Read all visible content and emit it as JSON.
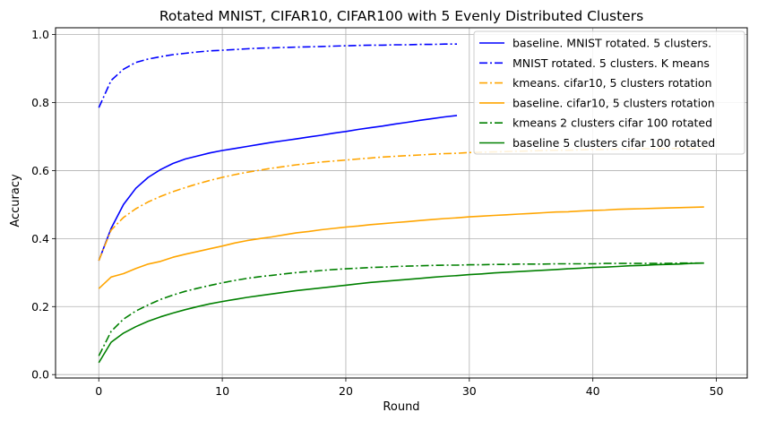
{
  "chart_data": {
    "type": "line",
    "title": "Rotated MNIST, CIFAR10, CIFAR100 with 5 Evenly Distributed Clusters",
    "xlabel": "Round",
    "ylabel": "Accuracy",
    "xlim": [
      -3.5,
      52.5
    ],
    "ylim": [
      -0.01,
      1.02
    ],
    "xticks": [
      0,
      10,
      20,
      30,
      40,
      50
    ],
    "yticks": [
      0.0,
      0.2,
      0.4,
      0.6,
      0.8,
      1.0
    ],
    "xtick_labels": [
      "0",
      "10",
      "20",
      "30",
      "40",
      "50"
    ],
    "ytick_labels": [
      "0.0",
      "0.2",
      "0.4",
      "0.6",
      "0.8",
      "1.0"
    ],
    "grid": true,
    "legend_position": "top-right",
    "series": [
      {
        "name": "baseline. MNIST rotated. 5 clusters.",
        "color": "#0000ff",
        "linestyle": "solid",
        "x": [
          0,
          1,
          2,
          3,
          4,
          5,
          6,
          7,
          8,
          9,
          10,
          11,
          12,
          13,
          14,
          15,
          16,
          17,
          18,
          19,
          20,
          21,
          22,
          23,
          24,
          25,
          26,
          27,
          28,
          29
        ],
        "values": [
          0.335,
          0.43,
          0.5,
          0.548,
          0.58,
          0.603,
          0.621,
          0.634,
          0.643,
          0.652,
          0.659,
          0.665,
          0.671,
          0.677,
          0.683,
          0.688,
          0.693,
          0.699,
          0.704,
          0.71,
          0.715,
          0.721,
          0.726,
          0.731,
          0.737,
          0.742,
          0.748,
          0.753,
          0.758,
          0.762
        ]
      },
      {
        "name": "MNIST rotated. 5 clusters. K means",
        "color": "#0000ff",
        "linestyle": "dashdot",
        "x": [
          0,
          1,
          2,
          3,
          4,
          5,
          6,
          7,
          8,
          9,
          10,
          11,
          12,
          13,
          14,
          15,
          16,
          17,
          18,
          19,
          20,
          21,
          22,
          23,
          24,
          25,
          26,
          27,
          28,
          29
        ],
        "values": [
          0.785,
          0.865,
          0.898,
          0.918,
          0.928,
          0.935,
          0.941,
          0.945,
          0.949,
          0.952,
          0.954,
          0.956,
          0.958,
          0.96,
          0.961,
          0.962,
          0.963,
          0.964,
          0.965,
          0.966,
          0.967,
          0.968,
          0.969,
          0.969,
          0.97,
          0.97,
          0.971,
          0.971,
          0.972,
          0.972
        ]
      },
      {
        "name": "kmeans. cifar10, 5 clusters rotation",
        "color": "#ffa500",
        "linestyle": "dashdot",
        "x": [
          0,
          1,
          2,
          3,
          4,
          5,
          6,
          7,
          8,
          9,
          10,
          11,
          12,
          13,
          14,
          15,
          16,
          17,
          18,
          19,
          20,
          21,
          22,
          23,
          24,
          25,
          26,
          27,
          28,
          29,
          30,
          31,
          32,
          33,
          34,
          35,
          36,
          37,
          38,
          39,
          40,
          41,
          42,
          43,
          44,
          45,
          46,
          47,
          48,
          49
        ],
        "values": [
          0.335,
          0.425,
          0.462,
          0.488,
          0.508,
          0.524,
          0.538,
          0.55,
          0.561,
          0.571,
          0.58,
          0.588,
          0.595,
          0.601,
          0.607,
          0.612,
          0.617,
          0.621,
          0.625,
          0.628,
          0.631,
          0.634,
          0.637,
          0.64,
          0.642,
          0.644,
          0.646,
          0.648,
          0.65,
          0.651,
          0.653,
          0.654,
          0.655,
          0.656,
          0.657,
          0.658,
          0.659,
          0.66,
          0.66,
          0.661,
          0.662,
          0.662,
          0.663,
          0.663,
          0.664,
          0.664,
          0.665,
          0.665,
          0.665,
          0.666
        ]
      },
      {
        "name": "baseline. cifar10, 5 clusters rotation",
        "color": "#ffa500",
        "linestyle": "solid",
        "x": [
          0,
          1,
          2,
          3,
          4,
          5,
          6,
          7,
          8,
          9,
          10,
          11,
          12,
          13,
          14,
          15,
          16,
          17,
          18,
          19,
          20,
          21,
          22,
          23,
          24,
          25,
          26,
          27,
          28,
          29,
          30,
          31,
          32,
          33,
          34,
          35,
          36,
          37,
          38,
          39,
          40,
          41,
          42,
          43,
          44,
          45,
          46,
          47,
          48,
          49
        ],
        "values": [
          0.253,
          0.287,
          0.297,
          0.312,
          0.325,
          0.333,
          0.345,
          0.354,
          0.362,
          0.37,
          0.378,
          0.387,
          0.394,
          0.4,
          0.405,
          0.411,
          0.417,
          0.421,
          0.426,
          0.43,
          0.434,
          0.437,
          0.441,
          0.444,
          0.447,
          0.45,
          0.453,
          0.456,
          0.459,
          0.461,
          0.464,
          0.466,
          0.468,
          0.47,
          0.472,
          0.474,
          0.476,
          0.478,
          0.479,
          0.481,
          0.483,
          0.484,
          0.486,
          0.487,
          0.488,
          0.489,
          0.49,
          0.491,
          0.492,
          0.493
        ]
      },
      {
        "name": "kmeans 2 clusters cifar 100 rotated",
        "color": "#008000",
        "linestyle": "dashdot",
        "x": [
          0,
          1,
          2,
          3,
          4,
          5,
          6,
          7,
          8,
          9,
          10,
          11,
          12,
          13,
          14,
          15,
          16,
          17,
          18,
          19,
          20,
          21,
          22,
          23,
          24,
          25,
          26,
          27,
          28,
          29,
          30,
          31,
          32,
          33,
          34,
          35,
          36,
          37,
          38,
          39,
          40,
          41,
          42,
          43,
          44,
          45,
          46,
          47,
          48,
          49
        ],
        "values": [
          0.055,
          0.127,
          0.163,
          0.187,
          0.205,
          0.221,
          0.234,
          0.245,
          0.254,
          0.262,
          0.27,
          0.277,
          0.283,
          0.288,
          0.292,
          0.296,
          0.3,
          0.303,
          0.306,
          0.309,
          0.311,
          0.313,
          0.315,
          0.316,
          0.318,
          0.319,
          0.32,
          0.321,
          0.322,
          0.322,
          0.323,
          0.323,
          0.324,
          0.324,
          0.325,
          0.325,
          0.325,
          0.326,
          0.326,
          0.326,
          0.326,
          0.327,
          0.327,
          0.327,
          0.327,
          0.327,
          0.327,
          0.328,
          0.328,
          0.328
        ]
      },
      {
        "name": "baseline 5 clusters cifar 100 rotated",
        "color": "#008000",
        "linestyle": "solid",
        "x": [
          0,
          1,
          2,
          3,
          4,
          5,
          6,
          7,
          8,
          9,
          10,
          11,
          12,
          13,
          14,
          15,
          16,
          17,
          18,
          19,
          20,
          21,
          22,
          23,
          24,
          25,
          26,
          27,
          28,
          29,
          30,
          31,
          32,
          33,
          34,
          35,
          36,
          37,
          38,
          39,
          40,
          41,
          42,
          43,
          44,
          45,
          46,
          47,
          48,
          49
        ],
        "values": [
          0.035,
          0.095,
          0.122,
          0.141,
          0.157,
          0.17,
          0.181,
          0.191,
          0.2,
          0.208,
          0.215,
          0.221,
          0.227,
          0.232,
          0.237,
          0.242,
          0.247,
          0.251,
          0.255,
          0.259,
          0.263,
          0.267,
          0.271,
          0.274,
          0.277,
          0.28,
          0.283,
          0.286,
          0.289,
          0.291,
          0.294,
          0.296,
          0.299,
          0.301,
          0.303,
          0.305,
          0.307,
          0.309,
          0.311,
          0.313,
          0.315,
          0.316,
          0.318,
          0.32,
          0.321,
          0.323,
          0.324,
          0.325,
          0.327,
          0.328
        ]
      }
    ]
  }
}
